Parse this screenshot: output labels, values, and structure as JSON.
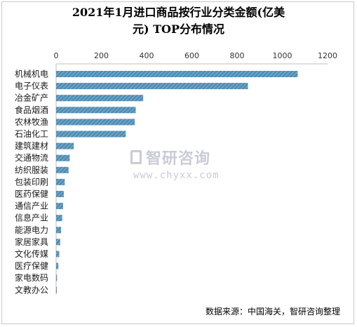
{
  "title_line1": "2021年1月进口商品按行业分类金额(亿美",
  "title_line2": "元) TOP分布情况",
  "source": "数据来源：中国海关，智研咨询整理",
  "watermark": {
    "name": "智研咨询",
    "url": "www.chyxx.com"
  },
  "colors": {
    "bar": "#4f8db4",
    "bar_stripe": "#9cc2da",
    "axis": "#bfbfbf"
  },
  "chart_data": {
    "type": "bar",
    "orientation": "horizontal",
    "x_axis_position": "top",
    "xlim": [
      0,
      1200
    ],
    "xticks": [
      0,
      200,
      400,
      600,
      800,
      1000,
      1200
    ],
    "grid": false,
    "categories": [
      "机械机电",
      "电子仪表",
      "冶金矿产",
      "食品烟酒",
      "农林牧渔",
      "石油化工",
      "建筑建材",
      "交通物流",
      "纺织服装",
      "包装印刷",
      "医药保健",
      "通信产业",
      "信息产业",
      "能源电力",
      "家居家具",
      "文化传媒",
      "医疗保健",
      "家电数码",
      "文教办公"
    ],
    "values": [
      1068,
      848,
      385,
      352,
      348,
      308,
      78,
      60,
      55,
      38,
      34,
      31,
      27,
      22,
      18,
      14,
      10,
      4,
      2
    ]
  }
}
